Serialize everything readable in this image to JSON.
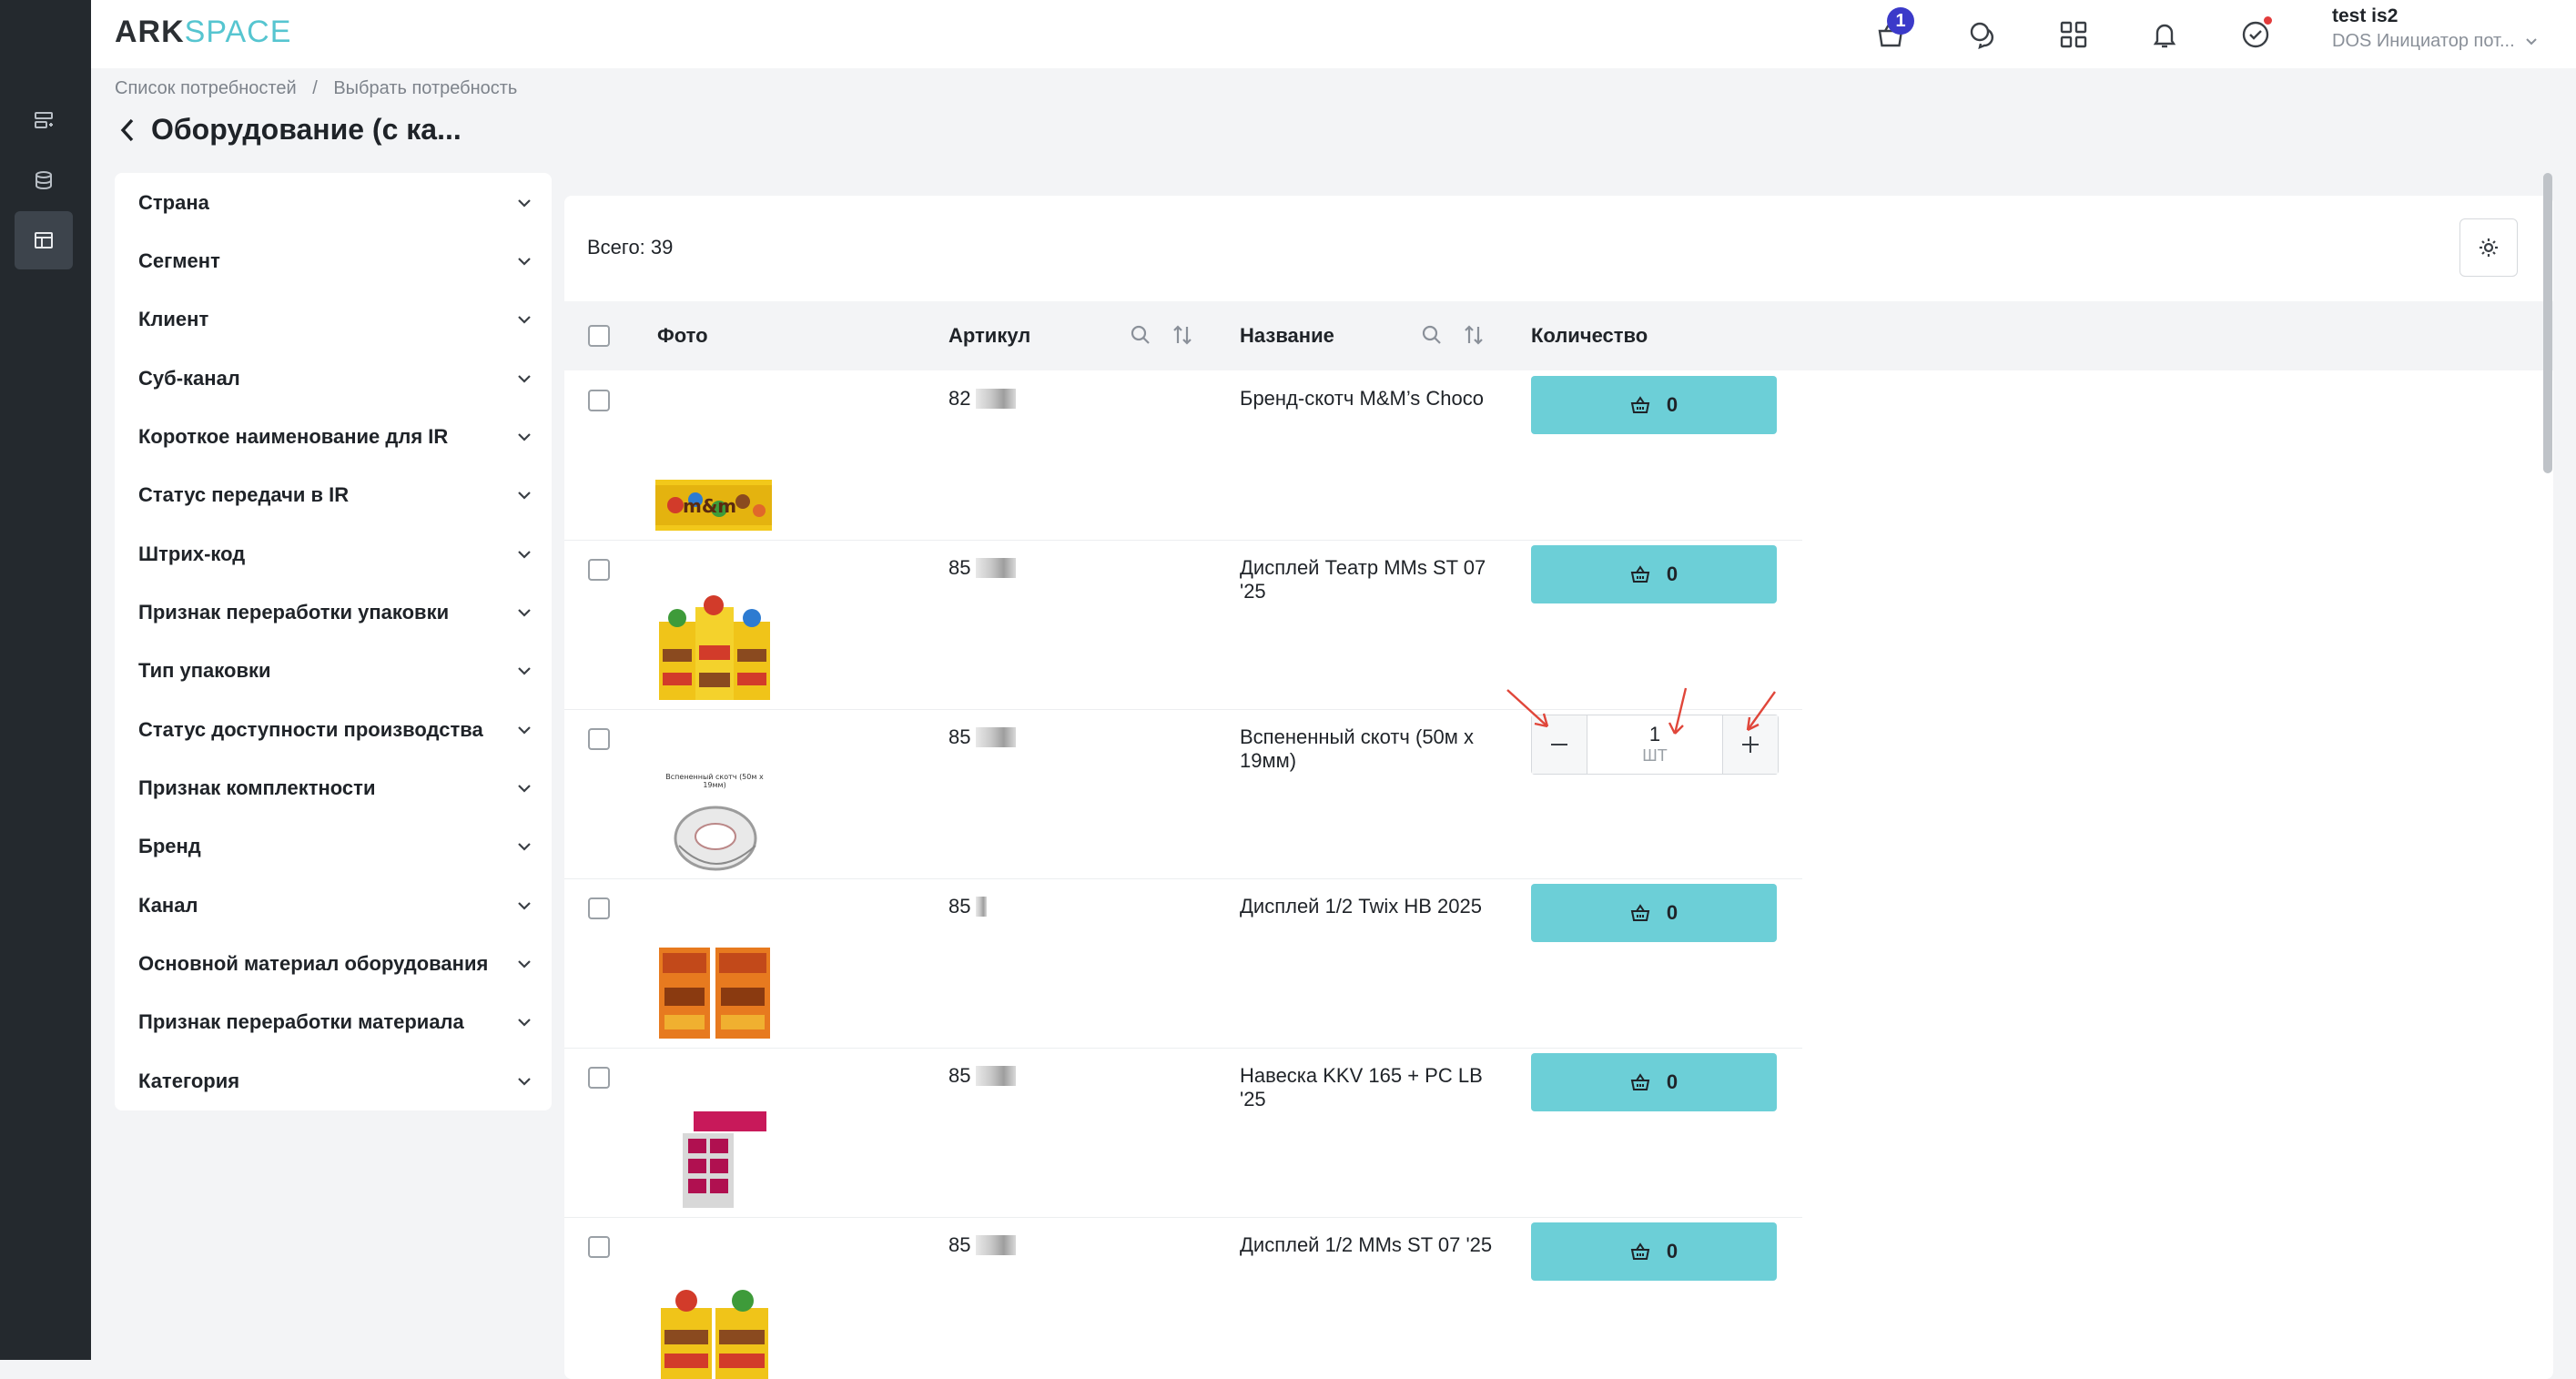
{
  "app": {
    "logo_ark": "ARK",
    "logo_space": "SPACE",
    "cart_count": "1",
    "user_name": "test is2",
    "user_role": "DOS Инициатор пот..."
  },
  "breadcrumb": {
    "item1": "Список потребностей",
    "separator": "/",
    "item2": "Выбрать потребность"
  },
  "page": {
    "title": "Оборудование (с ка..."
  },
  "filters": [
    "Страна",
    "Сегмент",
    "Клиент",
    "Суб-канал",
    "Короткое наименование для IR",
    "Статус передачи в IR",
    "Штрих-код",
    "Признак переработки упаковки",
    "Тип упаковки",
    "Статус доступности производства",
    "Признак комплектности",
    "Бренд",
    "Канал",
    "Основной материал оборудования",
    "Признак переработки материала",
    "Категория"
  ],
  "table": {
    "total": "Всего: 39",
    "columns": {
      "photo": "Фото",
      "article": "Артикул",
      "name": "Название",
      "quantity": "Количество"
    },
    "rows": [
      {
        "article": "82",
        "name": "Бренд-скотч M&M’s Choco",
        "qty": "0"
      },
      {
        "article": "85",
        "name": "Дисплей Театр MMs ST 07 '25",
        "qty": "0"
      },
      {
        "article": "85",
        "name": "Вспененный скотч (50м х 19мм)",
        "qty": "1",
        "unit": "ШТ",
        "photo_caption": "Вспененный скотч (50м х 19мм)"
      },
      {
        "article": "85",
        "name": "Дисплей 1/2 Twix HB 2025",
        "qty": "0"
      },
      {
        "article": "85",
        "name": "Навеска KKV 165 + PC LB '25",
        "qty": "0"
      },
      {
        "article": "85",
        "name": "Дисплей 1/2 MMs ST 07 '25",
        "qty": "0"
      }
    ]
  },
  "colors": {
    "accent": "#6ccfd7",
    "badge": "#3b3ac9",
    "rail": "#24292e",
    "annotation": "#e0463a"
  }
}
